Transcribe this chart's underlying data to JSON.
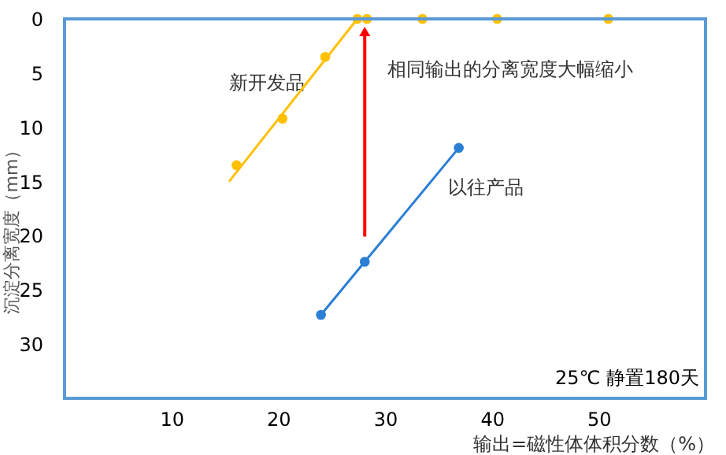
{
  "chart_data": {
    "type": "line",
    "xlabel": "输出=磁性体体积分数（%）",
    "ylabel": "沉淀分离宽度（mm）",
    "xlim": [
      0,
      60
    ],
    "xticks": [
      10,
      20,
      30,
      40,
      50
    ],
    "ylim": [
      35,
      0
    ],
    "yticks": [
      0,
      5,
      10,
      15,
      20,
      25,
      30
    ],
    "grid": false,
    "marker": "circle",
    "series": [
      {
        "name": "新开发品",
        "type": "scatter",
        "color": "#ffc000",
        "x": [
          16.1,
          20.4,
          24.4,
          27.4,
          28.3,
          33.5,
          40.5,
          50.9
        ],
        "values": [
          13.5,
          9.2,
          3.5,
          0,
          0,
          0,
          0,
          0
        ]
      },
      {
        "marker": "none",
        "color": "#ffc000",
        "x": [
          15.4,
          27.4
        ],
        "values": [
          15,
          0
        ]
      },
      {
        "name": "以往产品",
        "color": "#2a7fd4",
        "x": [
          24.0,
          28.1,
          36.9
        ],
        "values": [
          27.3,
          22.4,
          11.9
        ]
      }
    ],
    "annotations": [
      "相同输出的分离宽度大幅缩小",
      "25℃  静置180天"
    ]
  }
}
